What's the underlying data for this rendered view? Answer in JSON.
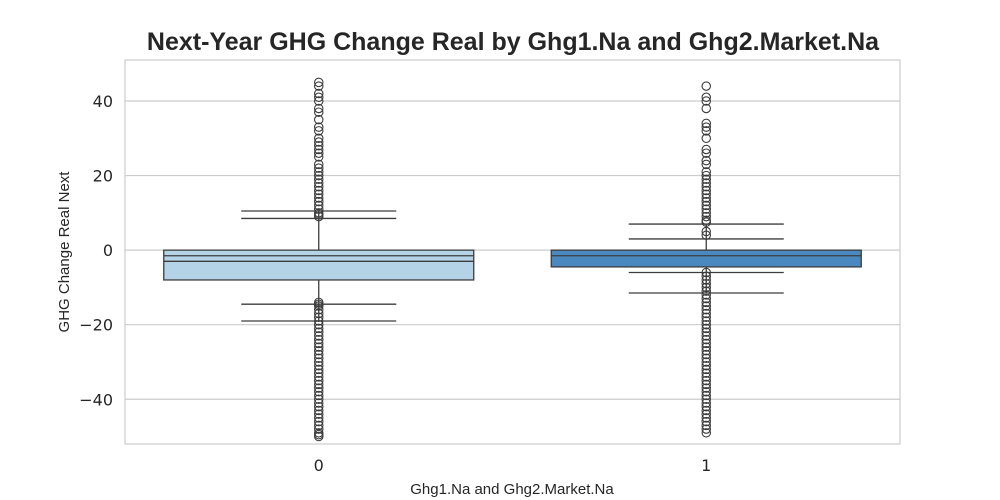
{
  "chart_data": {
    "type": "box",
    "title": "Next-Year GHG Change Real by Ghg1.Na and Ghg2.Market.Na",
    "xlabel": "Ghg1.Na and Ghg2.Market.Na",
    "ylabel": "GHG Change Real Next",
    "categories": [
      "0",
      "1"
    ],
    "ylim": [
      -52,
      51
    ],
    "yticks": [
      -40,
      -20,
      0,
      20,
      40
    ],
    "ytick_labels": [
      "−40",
      "−20",
      "0",
      "20",
      "40"
    ],
    "grid": true,
    "boxes": [
      {
        "category": "0",
        "color": "#b4d3e6",
        "whisker_low": -19,
        "q1": -8,
        "median": -3,
        "q3": 0,
        "whisker_high": 10.5,
        "mean_line": -1.5,
        "extra_lower_cap": -14.5,
        "extra_upper_cap": 8.5,
        "outliers": [
          45,
          44,
          42,
          41,
          40,
          38,
          37,
          35,
          33,
          32,
          30,
          29,
          28,
          27,
          26,
          25,
          23,
          22,
          21,
          20,
          19,
          18,
          17,
          16,
          15,
          14,
          13,
          12,
          11,
          10,
          9.5,
          9,
          -14,
          -14.5,
          -15,
          -16,
          -17,
          -18,
          -19,
          -20,
          -21,
          -22,
          -23,
          -24,
          -25,
          -26,
          -27,
          -28,
          -29,
          -30,
          -31,
          -32,
          -33,
          -34,
          -35,
          -36,
          -37,
          -38,
          -39,
          -40,
          -41,
          -42,
          -43,
          -44,
          -45,
          -46,
          -47,
          -48,
          -49,
          -49.5,
          -50
        ]
      },
      {
        "category": "1",
        "color": "#4a88c0",
        "whisker_low": -11.5,
        "q1": -4.5,
        "median": -1.5,
        "q3": 0,
        "whisker_high": 7,
        "mean_line": null,
        "extra_lower_cap": -6,
        "extra_upper_cap": 3,
        "outliers": [
          44,
          41,
          40,
          38,
          34,
          33,
          32,
          30,
          27,
          26,
          24,
          23,
          21,
          20,
          19,
          18,
          17,
          16,
          15,
          14,
          13,
          12,
          11,
          10,
          9,
          8,
          7.5,
          5,
          4,
          -6,
          -7,
          -8,
          -9,
          -10,
          -11,
          -12,
          -13,
          -14,
          -15,
          -16,
          -17,
          -18,
          -19,
          -20,
          -21,
          -22,
          -23,
          -24,
          -25,
          -26,
          -27,
          -28,
          -29,
          -30,
          -31,
          -32,
          -33,
          -34,
          -35,
          -36,
          -37,
          -38,
          -39,
          -40,
          -41,
          -42,
          -43,
          -44,
          -45,
          -46,
          -47,
          -48,
          -49
        ]
      }
    ]
  }
}
